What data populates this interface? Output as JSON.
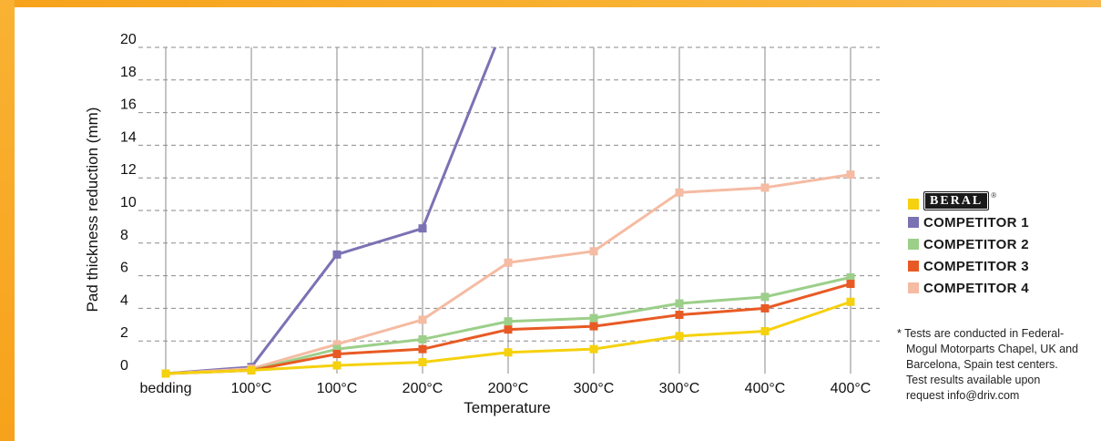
{
  "chart_data": {
    "type": "line",
    "categories": [
      "bedding",
      "100°C",
      "100°C",
      "200°C",
      "200°C",
      "300°C",
      "300°C",
      "400°C",
      "400°C"
    ],
    "xlabel": "Temperature",
    "ylabel": "Pad thickness reduction (mm)",
    "ylim": [
      0,
      20
    ],
    "yticks": [
      "0",
      "2",
      "4",
      "6",
      "8",
      "10",
      "12",
      "14",
      "16",
      "18",
      "20"
    ],
    "grid": true,
    "legend_position": "right",
    "series": [
      {
        "name": "BERAL",
        "color": "#f5d10e",
        "values": [
          0.0,
          0.2,
          0.5,
          0.7,
          1.3,
          1.5,
          2.3,
          2.6,
          4.4
        ]
      },
      {
        "name": "COMPETITOR 1",
        "color": "#7b72b4",
        "values": [
          0.0,
          0.4,
          7.3,
          8.9,
          22.0,
          null,
          null,
          null,
          null
        ]
      },
      {
        "name": "COMPETITOR 2",
        "color": "#9ccf8a",
        "values": [
          0.0,
          0.2,
          1.5,
          2.1,
          3.2,
          3.4,
          4.3,
          4.7,
          5.9
        ]
      },
      {
        "name": "COMPETITOR 3",
        "color": "#e85a24",
        "values": [
          0.0,
          0.2,
          1.2,
          1.5,
          2.7,
          2.9,
          3.6,
          4.0,
          5.5
        ]
      },
      {
        "name": "COMPETITOR 4",
        "color": "#f5bba3",
        "values": [
          0.0,
          0.3,
          1.8,
          3.3,
          6.8,
          7.5,
          11.1,
          11.4,
          12.2
        ]
      }
    ]
  },
  "legend": {
    "reg_mark": "®",
    "items": [
      {
        "label": "BERAL",
        "color": "#f5d10e",
        "logo": true
      },
      {
        "label": "COMPETITOR 1",
        "color": "#7b72b4",
        "logo": false
      },
      {
        "label": "COMPETITOR 2",
        "color": "#9ccf8a",
        "logo": false
      },
      {
        "label": "COMPETITOR 3",
        "color": "#e85a24",
        "logo": false
      },
      {
        "label": "COMPETITOR 4",
        "color": "#f5bba3",
        "logo": false
      }
    ]
  },
  "footnote": {
    "lines": [
      "* Tests are conducted in Federal-",
      "Mogul Motorparts Chapel, UK and",
      "Barcelona, Spain test centers.",
      "Test results available upon",
      "request info@driv.com"
    ]
  },
  "frame_color": "#f7a21b"
}
